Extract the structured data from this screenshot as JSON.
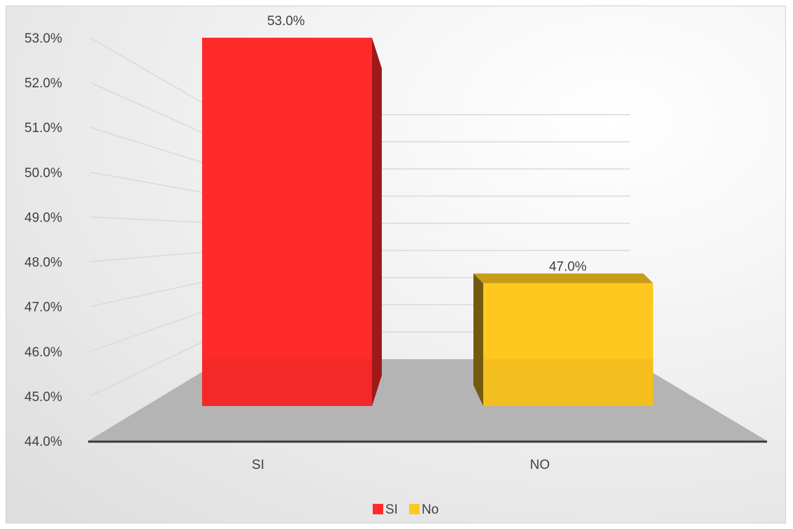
{
  "chart_data": {
    "type": "bar",
    "categories": [
      "SI",
      "NO"
    ],
    "values": [
      53.0,
      47.0
    ],
    "data_labels": [
      "53.0%",
      "47.0%"
    ],
    "ylim": [
      44.0,
      53.0
    ],
    "y_ticks": [
      "44.0%",
      "45.0%",
      "46.0%",
      "47.0%",
      "48.0%",
      "49.0%",
      "50.0%",
      "51.0%",
      "52.0%",
      "53.0%"
    ],
    "legend": [
      {
        "label": "SI",
        "color": "#ff2a2a"
      },
      {
        "label": "No",
        "color": "#ffc820"
      }
    ],
    "colors": [
      "#ff2a2a",
      "#ffc820"
    ],
    "legend_position": "bottom",
    "grid": true,
    "style": "3d-column",
    "title": "",
    "xlabel": "",
    "ylabel": ""
  }
}
